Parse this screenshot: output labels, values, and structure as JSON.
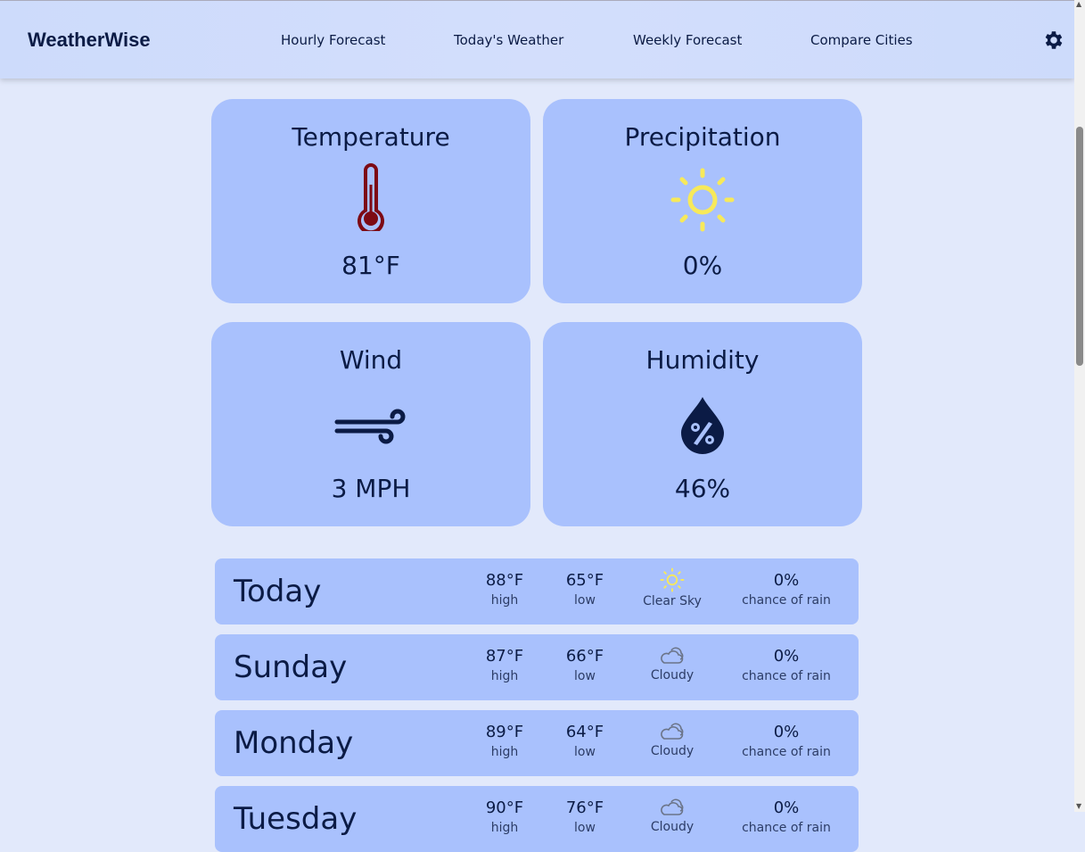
{
  "header": {
    "logo": "WeatherWise",
    "nav": [
      "Hourly Forecast",
      "Today's Weather",
      "Weekly Forecast",
      "Compare Cities"
    ],
    "settings_icon": "gear-icon"
  },
  "cards": [
    {
      "title": "Temperature",
      "value": "81°F",
      "icon": "thermometer-icon",
      "color": "#7d0a14"
    },
    {
      "title": "Precipitation",
      "value": "0%",
      "icon": "sun-icon",
      "color": "#f7e95a"
    },
    {
      "title": "Wind",
      "value": "3 MPH",
      "icon": "wind-icon",
      "color": "#0b1b45"
    },
    {
      "title": "Humidity",
      "value": "46%",
      "icon": "humidity-drop-icon",
      "color": "#0b1b45"
    }
  ],
  "forecast": [
    {
      "day": "Today",
      "high": "88°F",
      "high_label": "high",
      "low": "65°F",
      "low_label": "low",
      "condition": "Clear Sky",
      "icon": "sun-icon",
      "rain": "0%",
      "rain_label": "chance of rain"
    },
    {
      "day": "Sunday",
      "high": "87°F",
      "high_label": "high",
      "low": "66°F",
      "low_label": "low",
      "condition": "Cloudy",
      "icon": "cloud-icon",
      "rain": "0%",
      "rain_label": "chance of rain"
    },
    {
      "day": "Monday",
      "high": "89°F",
      "high_label": "high",
      "low": "64°F",
      "low_label": "low",
      "condition": "Cloudy",
      "icon": "cloud-icon",
      "rain": "0%",
      "rain_label": "chance of rain"
    },
    {
      "day": "Tuesday",
      "high": "90°F",
      "high_label": "high",
      "low": "76°F",
      "low_label": "low",
      "condition": "Cloudy",
      "icon": "cloud-icon",
      "rain": "0%",
      "rain_label": "chance of rain"
    }
  ]
}
